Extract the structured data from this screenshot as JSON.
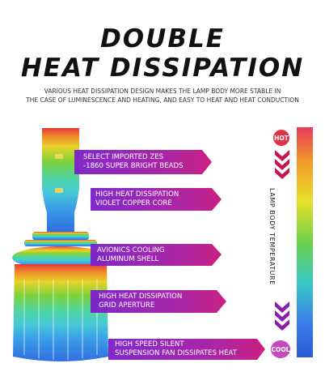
{
  "heading": {
    "line1": "DOUBLE",
    "line2": "HEAT DISSIPATION",
    "sub_line1": "VARIOUS HEAT DISSIPATION DESIGN MAKES THE LAMP BODY MORE STABLE IN",
    "sub_line2": "THE CASE OF LUMINESCENCE AND HEATING, AND EASY TO HEAT AND HEAT CONDUCTION"
  },
  "features": [
    {
      "line1": "SELECT IMPORTED ZES",
      "line2": "-1860 SUPER BRIGHT BEADS"
    },
    {
      "line1": "HIGH HEAT DISSIPATION",
      "line2": "VIOLET COPPER CORE"
    },
    {
      "line1": "AVIONICS COOLING",
      "line2": "ALUMINUM SHELL"
    },
    {
      "line1": "HIGH HEAT DISSIPATION",
      "line2": "GRID APERTURE"
    },
    {
      "line1": "HIGH SPEED SILENT",
      "line2": "SUSPENSION FAN DISSIPATES HEAT"
    }
  ],
  "scale": {
    "hot_label": "HOT",
    "cool_label": "COOL",
    "caption": "LAMP BODY TEMPERATURE",
    "hot_color": "#e0334a",
    "cool_color": "#c64abf"
  },
  "colors": {
    "banner_start": "#7a1ec8",
    "banner_end": "#c8147a",
    "chevron": "#c2184f"
  }
}
